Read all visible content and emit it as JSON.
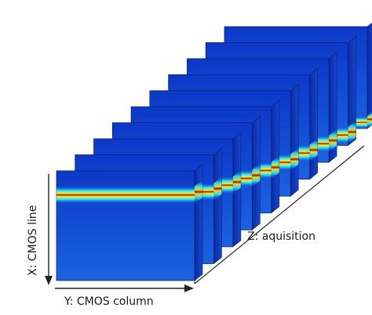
{
  "labels": {
    "x_axis": "X:  CMOS line",
    "y_axis": "Y:  CMOS column",
    "z_axis": "Z:  aquisition"
  },
  "frames": {
    "count": 10,
    "band_levels": [
      0.78,
      0.66,
      0.57,
      0.48,
      0.4,
      0.32,
      0.25,
      0.18,
      0.1,
      0.04
    ]
  },
  "colors": {
    "field_blue": "#1657d8",
    "field_dark": "#0a2fb8",
    "band_cyan": "#25e7ff",
    "band_yellow": "#f4f21a",
    "band_red": "#c20000",
    "frame_edge": "#0b1f6a",
    "base_line": "#222222"
  }
}
